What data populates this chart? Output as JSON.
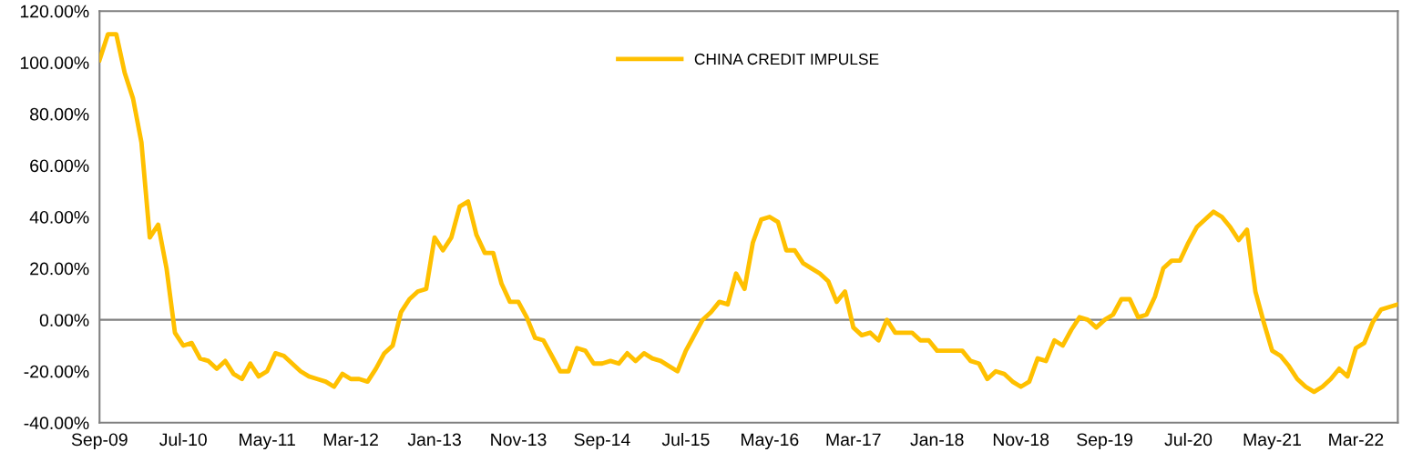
{
  "chart_data": {
    "type": "line",
    "x": [
      "2009-09",
      "2009-10",
      "2009-11",
      "2009-12",
      "2010-01",
      "2010-02",
      "2010-03",
      "2010-04",
      "2010-05",
      "2010-06",
      "2010-07",
      "2010-08",
      "2010-09",
      "2010-10",
      "2010-11",
      "2010-12",
      "2011-01",
      "2011-02",
      "2011-03",
      "2011-04",
      "2011-05",
      "2011-06",
      "2011-07",
      "2011-08",
      "2011-09",
      "2011-10",
      "2011-11",
      "2011-12",
      "2012-01",
      "2012-02",
      "2012-03",
      "2012-04",
      "2012-05",
      "2012-06",
      "2012-07",
      "2012-08",
      "2012-09",
      "2012-10",
      "2012-11",
      "2012-12",
      "2013-01",
      "2013-02",
      "2013-03",
      "2013-04",
      "2013-05",
      "2013-06",
      "2013-07",
      "2013-08",
      "2013-09",
      "2013-10",
      "2013-11",
      "2013-12",
      "2014-01",
      "2014-02",
      "2014-03",
      "2014-04",
      "2014-05",
      "2014-06",
      "2014-07",
      "2014-08",
      "2014-09",
      "2014-10",
      "2014-11",
      "2014-12",
      "2015-01",
      "2015-02",
      "2015-03",
      "2015-04",
      "2015-05",
      "2015-06",
      "2015-07",
      "2015-08",
      "2015-09",
      "2015-10",
      "2015-11",
      "2015-12",
      "2016-01",
      "2016-02",
      "2016-03",
      "2016-04",
      "2016-05",
      "2016-06",
      "2016-07",
      "2016-08",
      "2016-09",
      "2016-10",
      "2016-11",
      "2016-12",
      "2017-01",
      "2017-02",
      "2017-03",
      "2017-04",
      "2017-05",
      "2017-06",
      "2017-07",
      "2017-08",
      "2017-09",
      "2017-10",
      "2017-11",
      "2017-12",
      "2018-01",
      "2018-02",
      "2018-03",
      "2018-04",
      "2018-05",
      "2018-06",
      "2018-07",
      "2018-08",
      "2018-09",
      "2018-10",
      "2018-11",
      "2018-12",
      "2019-01",
      "2019-02",
      "2019-03",
      "2019-04",
      "2019-05",
      "2019-06",
      "2019-07",
      "2019-08",
      "2019-09",
      "2019-10",
      "2019-11",
      "2019-12",
      "2020-01",
      "2020-02",
      "2020-03",
      "2020-04",
      "2020-05",
      "2020-06",
      "2020-07",
      "2020-08",
      "2020-09",
      "2020-10",
      "2020-11",
      "2020-12",
      "2021-01",
      "2021-02",
      "2021-03",
      "2021-04",
      "2021-05",
      "2021-06",
      "2021-07",
      "2021-08",
      "2021-09",
      "2021-10",
      "2021-11",
      "2021-12",
      "2022-01",
      "2022-02",
      "2022-03",
      "2022-04",
      "2022-05",
      "2022-06",
      "2022-07",
      "2022-08"
    ],
    "series": [
      {
        "name": "CHINA CREDIT IMPULSE",
        "color": "#ffc000",
        "values": [
          101,
          111,
          111,
          96,
          86,
          69,
          32,
          37,
          20,
          -5,
          -10,
          -9,
          -15,
          -16,
          -19,
          -16,
          -21,
          -23,
          -17,
          -22,
          -20,
          -13,
          -14,
          -17,
          -20,
          -22,
          -23,
          -24,
          -26,
          -21,
          -23,
          -23,
          -24,
          -19,
          -13,
          -10,
          3,
          8,
          11,
          12,
          32,
          27,
          32,
          44,
          46,
          33,
          26,
          26,
          14,
          7,
          7,
          1,
          -7,
          -8,
          -14,
          -20,
          -20,
          -11,
          -12,
          -17,
          -17,
          -16,
          -17,
          -13,
          -16,
          -13,
          -15,
          -16,
          -18,
          -20,
          -12,
          -6,
          0,
          3,
          7,
          6,
          18,
          12,
          30,
          39,
          40,
          38,
          27,
          27,
          22,
          20,
          18,
          15,
          7,
          11,
          -3,
          -6,
          -5,
          -8,
          0,
          -5,
          -5,
          -5,
          -8,
          -8,
          -12,
          -12,
          -12,
          -12,
          -16,
          -17,
          -23,
          -20,
          -21,
          -24,
          -26,
          -24,
          -15,
          -16,
          -8,
          -10,
          -4,
          1,
          0,
          -3,
          0,
          2,
          8,
          8,
          1,
          2,
          9,
          20,
          23,
          23,
          30,
          36,
          39,
          42,
          40,
          36,
          31,
          35,
          11,
          -1,
          -12,
          -14,
          -18,
          -23,
          -26,
          -28,
          -26,
          -23,
          -19,
          -22,
          -11,
          -9,
          -1,
          4,
          5,
          6
        ]
      }
    ],
    "xlim": [
      "2009-09",
      "2022-08"
    ],
    "xticks": [
      {
        "value": "2009-09",
        "label": "Sep-09"
      },
      {
        "value": "2010-07",
        "label": "Jul-10"
      },
      {
        "value": "2011-05",
        "label": "May-11"
      },
      {
        "value": "2012-03",
        "label": "Mar-12"
      },
      {
        "value": "2013-01",
        "label": "Jan-13"
      },
      {
        "value": "2013-11",
        "label": "Nov-13"
      },
      {
        "value": "2014-09",
        "label": "Sep-14"
      },
      {
        "value": "2015-07",
        "label": "Jul-15"
      },
      {
        "value": "2016-05",
        "label": "May-16"
      },
      {
        "value": "2017-03",
        "label": "Mar-17"
      },
      {
        "value": "2018-01",
        "label": "Jan-18"
      },
      {
        "value": "2018-11",
        "label": "Nov-18"
      },
      {
        "value": "2019-09",
        "label": "Sep-19"
      },
      {
        "value": "2020-07",
        "label": "Jul-20"
      },
      {
        "value": "2021-05",
        "label": "May-21"
      },
      {
        "value": "2022-03",
        "label": "Mar-22"
      }
    ],
    "ylim": [
      -40,
      120
    ],
    "yticks": [
      {
        "value": -40,
        "label": "-40.00%"
      },
      {
        "value": -20,
        "label": "-20.00%"
      },
      {
        "value": 0,
        "label": "0.00%"
      },
      {
        "value": 20,
        "label": "20.00%"
      },
      {
        "value": 40,
        "label": "40.00%"
      },
      {
        "value": 60,
        "label": "60.00%"
      },
      {
        "value": 80,
        "label": "80.00%"
      },
      {
        "value": 100,
        "label": "100.00%"
      },
      {
        "value": 120,
        "label": "120.00%"
      }
    ],
    "ref_lines": [
      {
        "axis": "y",
        "value": 0,
        "color": "#808080"
      }
    ],
    "grid": false,
    "legend": "top",
    "marker": "none",
    "line_style": "solid"
  }
}
